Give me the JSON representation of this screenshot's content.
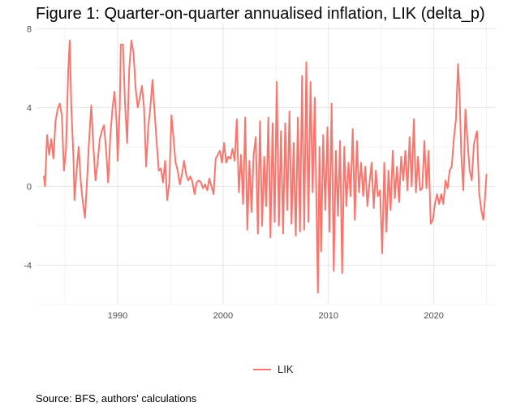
{
  "chart_data": {
    "type": "line",
    "title": "Figure 1: Quarter-on-quarter annualised inflation, LIK (delta_p)",
    "caption": "Source: BFS, authors' calculations",
    "xlabel": "",
    "ylabel": "",
    "xlim": [
      1982.3,
      2025.8
    ],
    "ylim": [
      -6.0,
      8.3
    ],
    "x_ticks": [
      1990,
      2000,
      2010,
      2020
    ],
    "x_tick_labels": [
      "1990",
      "2000",
      "2010",
      "2020"
    ],
    "y_ticks": [
      -4,
      0,
      4,
      8
    ],
    "y_tick_labels": [
      "-4",
      "0",
      "4",
      "8"
    ],
    "grid": true,
    "legend_position": "bottom",
    "color": "#F8766D",
    "series": [
      {
        "name": "LIK",
        "points": [
          [
            1983.0,
            0.5
          ],
          [
            1983.1,
            0.0
          ],
          [
            1983.3,
            2.6
          ],
          [
            1983.5,
            1.6
          ],
          [
            1983.7,
            2.4
          ],
          [
            1983.9,
            1.4
          ],
          [
            1984.1,
            3.3
          ],
          [
            1984.3,
            3.9
          ],
          [
            1984.5,
            4.2
          ],
          [
            1984.7,
            3.6
          ],
          [
            1984.9,
            0.8
          ],
          [
            1985.1,
            1.9
          ],
          [
            1985.3,
            5.8
          ],
          [
            1985.45,
            7.4
          ],
          [
            1985.6,
            4.0
          ],
          [
            1985.8,
            1.5
          ],
          [
            1985.9,
            -0.7
          ],
          [
            1986.1,
            0.8
          ],
          [
            1986.3,
            2.0
          ],
          [
            1986.5,
            0.2
          ],
          [
            1986.7,
            -0.8
          ],
          [
            1986.9,
            -1.6
          ],
          [
            1987.1,
            0.3
          ],
          [
            1987.3,
            2.4
          ],
          [
            1987.5,
            4.1
          ],
          [
            1987.7,
            2.0
          ],
          [
            1987.9,
            0.3
          ],
          [
            1988.1,
            1.2
          ],
          [
            1988.3,
            2.4
          ],
          [
            1988.5,
            2.8
          ],
          [
            1988.7,
            3.1
          ],
          [
            1988.9,
            1.9
          ],
          [
            1989.1,
            0.2
          ],
          [
            1989.3,
            2.5
          ],
          [
            1989.5,
            3.9
          ],
          [
            1989.7,
            4.8
          ],
          [
            1989.9,
            3.2
          ],
          [
            1990.0,
            1.3
          ],
          [
            1990.2,
            4.0
          ],
          [
            1990.3,
            7.2
          ],
          [
            1990.5,
            7.2
          ],
          [
            1990.7,
            4.2
          ],
          [
            1990.9,
            2.2
          ],
          [
            1991.1,
            6.0
          ],
          [
            1991.3,
            7.4
          ],
          [
            1991.5,
            6.8
          ],
          [
            1991.7,
            5.0
          ],
          [
            1991.9,
            4.0
          ],
          [
            1992.1,
            4.5
          ],
          [
            1992.3,
            5.1
          ],
          [
            1992.5,
            4.0
          ],
          [
            1992.7,
            1.0
          ],
          [
            1992.9,
            3.0
          ],
          [
            1993.1,
            4.0
          ],
          [
            1993.3,
            5.4
          ],
          [
            1993.5,
            3.8
          ],
          [
            1993.7,
            2.2
          ],
          [
            1993.9,
            0.8
          ],
          [
            1994.1,
            0.9
          ],
          [
            1994.3,
            0.2
          ],
          [
            1994.5,
            1.3
          ],
          [
            1994.7,
            -0.7
          ],
          [
            1994.9,
            0.2
          ],
          [
            1995.1,
            3.6
          ],
          [
            1995.3,
            2.4
          ],
          [
            1995.5,
            1.2
          ],
          [
            1995.7,
            0.8
          ],
          [
            1995.9,
            0.1
          ],
          [
            1996.1,
            0.6
          ],
          [
            1996.3,
            1.3
          ],
          [
            1996.5,
            0.6
          ],
          [
            1996.7,
            0.3
          ],
          [
            1996.9,
            0.5
          ],
          [
            1997.1,
            0.2
          ],
          [
            1997.3,
            -0.4
          ],
          [
            1997.5,
            0.2
          ],
          [
            1997.7,
            0.3
          ],
          [
            1997.9,
            0.2
          ],
          [
            1998.1,
            -0.1
          ],
          [
            1998.3,
            0.1
          ],
          [
            1998.5,
            -0.2
          ],
          [
            1998.7,
            0.4
          ],
          [
            1998.9,
            0.0
          ],
          [
            1999.1,
            -0.4
          ],
          [
            1999.3,
            1.4
          ],
          [
            1999.5,
            1.6
          ],
          [
            1999.7,
            1.8
          ],
          [
            1999.9,
            1.2
          ],
          [
            2000.1,
            2.2
          ],
          [
            2000.3,
            1.2
          ],
          [
            2000.5,
            1.5
          ],
          [
            2000.7,
            1.4
          ],
          [
            2000.9,
            1.9
          ],
          [
            2001.1,
            1.3
          ],
          [
            2001.3,
            3.4
          ],
          [
            2001.5,
            -0.3
          ],
          [
            2001.7,
            1.6
          ],
          [
            2001.9,
            -0.9
          ],
          [
            2002.1,
            3.5
          ],
          [
            2002.3,
            -2.2
          ],
          [
            2002.5,
            1.3
          ],
          [
            2002.7,
            -1.3
          ],
          [
            2002.9,
            1.6
          ],
          [
            2003.1,
            2.5
          ],
          [
            2003.3,
            -2.4
          ],
          [
            2003.5,
            3.3
          ],
          [
            2003.7,
            -2.0
          ],
          [
            2003.9,
            1.5
          ],
          [
            2004.1,
            -1.0
          ],
          [
            2004.3,
            3.5
          ],
          [
            2004.5,
            -2.6
          ],
          [
            2004.7,
            3.2
          ],
          [
            2004.9,
            -1.8
          ],
          [
            2005.1,
            5.3
          ],
          [
            2005.3,
            -2.0
          ],
          [
            2005.5,
            2.8
          ],
          [
            2005.7,
            -2.4
          ],
          [
            2005.9,
            3.2
          ],
          [
            2006.1,
            -1.2
          ],
          [
            2006.3,
            3.8
          ],
          [
            2006.5,
            -1.9
          ],
          [
            2006.7,
            2.2
          ],
          [
            2006.9,
            -2.5
          ],
          [
            2007.1,
            3.5
          ],
          [
            2007.3,
            -2.3
          ],
          [
            2007.5,
            5.6
          ],
          [
            2007.7,
            -2.2
          ],
          [
            2007.9,
            6.3
          ],
          [
            2008.1,
            -1.8
          ],
          [
            2008.3,
            5.3
          ],
          [
            2008.5,
            -0.3
          ],
          [
            2008.7,
            4.5
          ],
          [
            2008.9,
            -2.2
          ],
          [
            2009.0,
            -5.4
          ],
          [
            2009.15,
            2.0
          ],
          [
            2009.3,
            -3.3
          ],
          [
            2009.5,
            2.6
          ],
          [
            2009.7,
            -1.2
          ],
          [
            2009.9,
            3.0
          ],
          [
            2010.1,
            -2.3
          ],
          [
            2010.3,
            4.2
          ],
          [
            2010.5,
            -4.3
          ],
          [
            2010.7,
            1.8
          ],
          [
            2010.9,
            -1.5
          ],
          [
            2011.1,
            2.3
          ],
          [
            2011.3,
            -4.4
          ],
          [
            2011.5,
            2.0
          ],
          [
            2011.7,
            -1.0
          ],
          [
            2011.9,
            1.2
          ],
          [
            2012.1,
            -0.5
          ],
          [
            2012.3,
            2.9
          ],
          [
            2012.5,
            -1.7
          ],
          [
            2012.7,
            2.3
          ],
          [
            2012.9,
            -0.3
          ],
          [
            2013.1,
            1.2
          ],
          [
            2013.3,
            -0.5
          ],
          [
            2013.5,
            1.0
          ],
          [
            2013.7,
            -1.0
          ],
          [
            2013.9,
            0.2
          ],
          [
            2014.1,
            1.2
          ],
          [
            2014.3,
            -1.1
          ],
          [
            2014.5,
            0.8
          ],
          [
            2014.7,
            -0.5
          ],
          [
            2014.9,
            -0.2
          ],
          [
            2015.1,
            -3.4
          ],
          [
            2015.3,
            1.2
          ],
          [
            2015.5,
            -2.3
          ],
          [
            2015.7,
            0.8
          ],
          [
            2015.9,
            -1.2
          ],
          [
            2016.1,
            1.8
          ],
          [
            2016.3,
            -0.6
          ],
          [
            2016.5,
            1.0
          ],
          [
            2016.7,
            -0.8
          ],
          [
            2016.9,
            1.5
          ],
          [
            2017.1,
            0.3
          ],
          [
            2017.3,
            1.8
          ],
          [
            2017.5,
            -0.2
          ],
          [
            2017.7,
            2.5
          ],
          [
            2017.9,
            0.0
          ],
          [
            2018.1,
            3.4
          ],
          [
            2018.3,
            -0.3
          ],
          [
            2018.5,
            1.5
          ],
          [
            2018.7,
            -0.2
          ],
          [
            2018.9,
            -0.1
          ],
          [
            2019.1,
            2.3
          ],
          [
            2019.3,
            -0.1
          ],
          [
            2019.5,
            1.8
          ],
          [
            2019.7,
            -1.9
          ],
          [
            2019.9,
            -1.7
          ],
          [
            2020.1,
            -0.9
          ],
          [
            2020.3,
            -0.4
          ],
          [
            2020.5,
            -0.9
          ],
          [
            2020.7,
            -0.4
          ],
          [
            2020.9,
            -0.9
          ],
          [
            2021.1,
            0.3
          ],
          [
            2021.3,
            -0.1
          ],
          [
            2021.5,
            0.8
          ],
          [
            2021.7,
            1.0
          ],
          [
            2021.9,
            2.4
          ],
          [
            2022.1,
            3.4
          ],
          [
            2022.3,
            6.2
          ],
          [
            2022.45,
            4.5
          ],
          [
            2022.6,
            1.7
          ],
          [
            2022.8,
            -0.2
          ],
          [
            2023.0,
            3.9
          ],
          [
            2023.2,
            2.3
          ],
          [
            2023.4,
            0.8
          ],
          [
            2023.6,
            0.3
          ],
          [
            2023.8,
            2.1
          ],
          [
            2023.95,
            2.5
          ],
          [
            2024.1,
            2.8
          ],
          [
            2024.3,
            -0.3
          ],
          [
            2024.5,
            -1.2
          ],
          [
            2024.7,
            -1.7
          ],
          [
            2024.85,
            -0.6
          ],
          [
            2025.0,
            0.6
          ]
        ]
      }
    ]
  }
}
